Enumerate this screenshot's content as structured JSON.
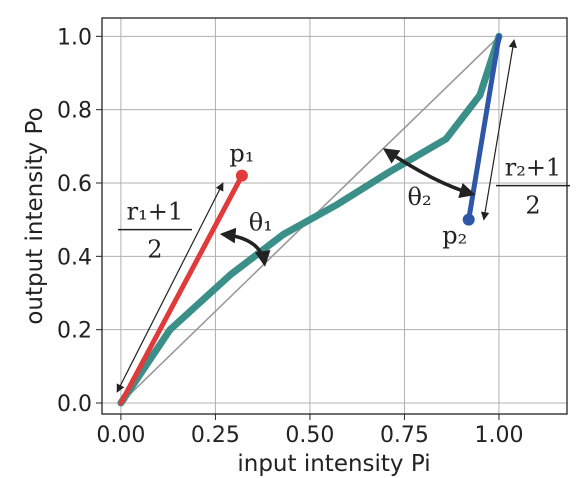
{
  "chart_data": {
    "type": "line",
    "title": "",
    "xlabel": "input intensity Pi",
    "ylabel": "output intensity Po",
    "xlim": [
      -0.05,
      1.18
    ],
    "ylim": [
      -0.03,
      1.05
    ],
    "x_ticks": [
      "0.00",
      "0.25",
      "0.50",
      "0.75",
      "1.00"
    ],
    "x_tick_values": [
      0,
      0.25,
      0.5,
      0.75,
      1.0
    ],
    "y_ticks": [
      "0.0",
      "0.2",
      "0.4",
      "0.6",
      "0.8",
      "1.0"
    ],
    "y_tick_values": [
      0,
      0.2,
      0.4,
      0.6,
      0.8,
      1.0
    ],
    "grid": true,
    "series": [
      {
        "color": "#3a8f89",
        "x": [
          0,
          0.13,
          0.29,
          0.43,
          0.5,
          0.57,
          0.71,
          0.86,
          0.95,
          1.0
        ],
        "y": [
          0,
          0.2,
          0.35,
          0.46,
          0.5,
          0.54,
          0.63,
          0.72,
          0.84,
          1.0
        ]
      },
      {
        "color": "#999999",
        "x": [
          0,
          1
        ],
        "y": [
          0,
          1
        ]
      },
      {
        "color": "#e03a3a",
        "x": [
          0,
          0.32
        ],
        "y": [
          0,
          0.62
        ]
      },
      {
        "color": "#2e57a8",
        "x": [
          0.92,
          1.0
        ],
        "y": [
          0.5,
          1.0
        ]
      }
    ],
    "points": [
      {
        "label": "p₁",
        "x": 0.32,
        "y": 0.62,
        "color": "#e03a3a"
      },
      {
        "label": "p₂",
        "x": 0.92,
        "y": 0.5,
        "color": "#2e57a8"
      }
    ],
    "annotations": {
      "theta1": "θ₁",
      "theta2": "θ₂",
      "r1_numerator": "r₁+1",
      "r1_denominator": "2",
      "r2_numerator": "r₂+1",
      "r2_denominator": "2"
    }
  }
}
